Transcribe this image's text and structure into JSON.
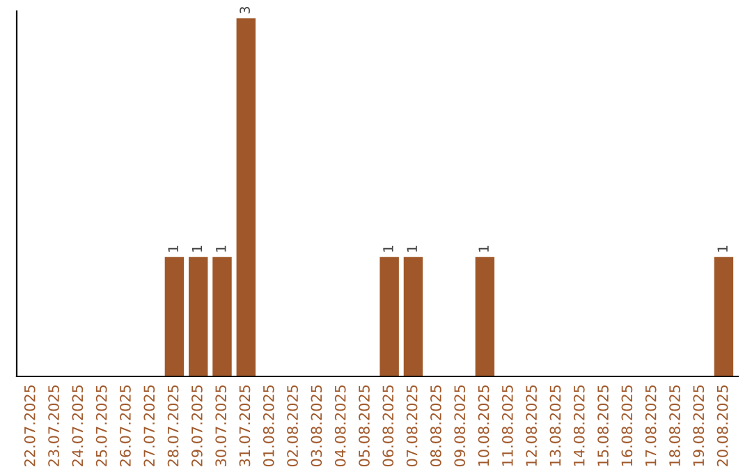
{
  "chart_data": {
    "type": "bar",
    "categories": [
      "22.07.2025",
      "23.07.2025",
      "24.07.2025",
      "25.07.2025",
      "26.07.2025",
      "27.07.2025",
      "28.07.2025",
      "29.07.2025",
      "30.07.2025",
      "31.07.2025",
      "01.08.2025",
      "02.08.2025",
      "03.08.2025",
      "04.08.2025",
      "05.08.2025",
      "06.08.2025",
      "07.08.2025",
      "08.08.2025",
      "09.08.2025",
      "10.08.2025",
      "11.08.2025",
      "12.08.2025",
      "13.08.2025",
      "14.08.2025",
      "15.08.2025",
      "16.08.2025",
      "17.08.2025",
      "18.08.2025",
      "19.08.2025",
      "20.08.2025"
    ],
    "values": [
      0,
      0,
      0,
      0,
      0,
      0,
      1,
      1,
      1,
      3,
      0,
      0,
      0,
      0,
      0,
      1,
      1,
      0,
      0,
      1,
      0,
      0,
      0,
      0,
      0,
      0,
      0,
      0,
      0,
      1
    ],
    "value_labels": [
      null,
      null,
      null,
      null,
      null,
      null,
      "1",
      "1",
      "1",
      "3",
      null,
      null,
      null,
      null,
      null,
      "1",
      "1",
      null,
      null,
      "1",
      null,
      null,
      null,
      null,
      null,
      null,
      null,
      null,
      null,
      "1"
    ],
    "color": "#a0582a",
    "tick_labels": "x",
    "grid": false,
    "legend": false
  }
}
